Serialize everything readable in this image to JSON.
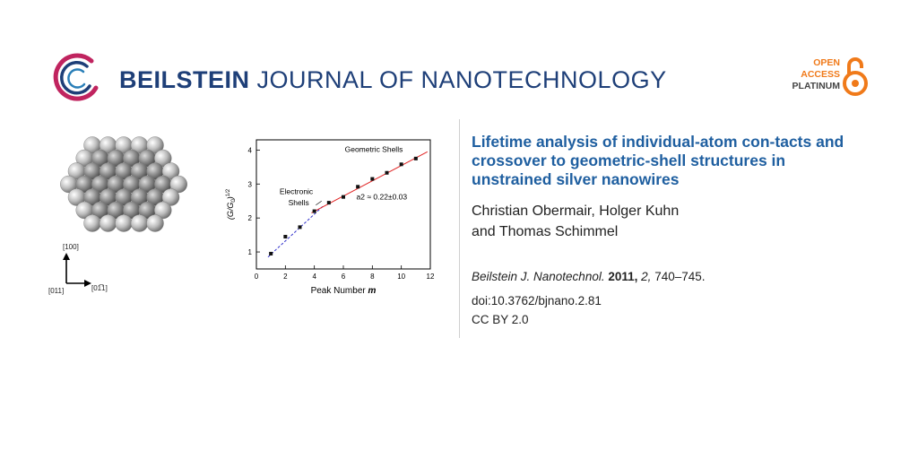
{
  "header": {
    "journal_bold": "BEILSTEIN",
    "journal_rest": "JOURNAL OF NANOTECHNOLOGY",
    "oa_line1": "OPEN",
    "oa_line2": "ACCESS",
    "oa_line3": "PLATINUM",
    "brand_color": "#1e3f78",
    "accent_orange": "#f07a1a",
    "accent_magenta": "#c0245f"
  },
  "figure": {
    "axis_labels": {
      "up": "[100]",
      "left": "[011]",
      "right": "[01̅1]"
    },
    "chart_data": {
      "type": "scatter",
      "title": "",
      "xlabel": "Peak Number m",
      "ylabel": "(G/G0)^1/2",
      "xlim": [
        0,
        12
      ],
      "ylim": [
        0.5,
        4.3
      ],
      "x_ticks": [
        "0",
        "2",
        "4",
        "6",
        "8",
        "10",
        "12"
      ],
      "y_ticks": [
        "1",
        "2",
        "3",
        "4"
      ],
      "annotations": [
        "Geometric Shells",
        "Electronic",
        "Shells",
        "a2 ≈ 0.22±0.03"
      ],
      "series": [
        {
          "values_x": [
            1,
            2,
            3,
            4,
            5,
            6,
            7,
            8,
            9,
            10,
            11
          ],
          "values_y": [
            0.95,
            1.45,
            1.73,
            2.2,
            2.45,
            2.62,
            2.92,
            3.15,
            3.33,
            3.58,
            3.75
          ]
        }
      ],
      "fit_lines": [
        {
          "style": "dashed",
          "color": "#3333cc",
          "x": [
            0.8,
            4.6
          ],
          "y": [
            0.85,
            2.35
          ]
        },
        {
          "style": "solid",
          "color": "#e02020",
          "x": [
            3.8,
            11.8
          ],
          "y": [
            2.15,
            3.95
          ]
        }
      ]
    }
  },
  "article": {
    "title": "Lifetime analysis of individual-atom con-tacts and crossover to geometric-shell structures in unstrained silver nanowires",
    "authors_line1": "Christian Obermair, Holger Kuhn",
    "authors_line2": "and Thomas Schimmel",
    "journal_abbrev": "Beilstein J. Nanotechnol.",
    "year": "2011,",
    "volume": "2,",
    "pages": "740–745.",
    "doi": "doi:10.3762/bjnano.2.81",
    "license": "CC BY 2.0"
  }
}
